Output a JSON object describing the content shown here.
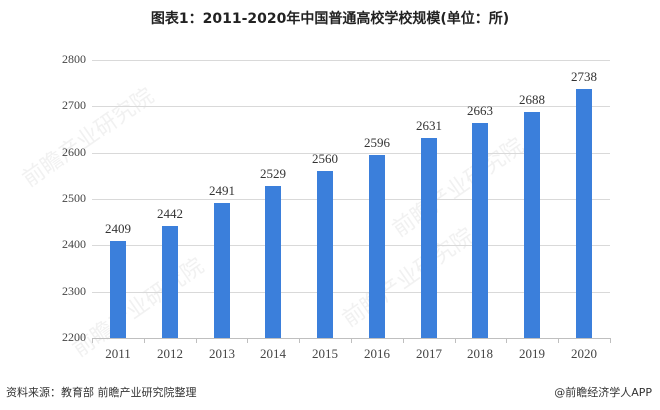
{
  "title": "图表1：2011-2020年中国普通高校学校规模(单位：所)",
  "footer": {
    "source": "资料来源：教育部 前瞻产业研究院整理",
    "credit": "@前瞻经济学人APP"
  },
  "watermark": "前瞻产业研究院",
  "colors": {
    "bar": "#3B7FDB",
    "grid": "#d9d9d9",
    "axis": "#bfbfbf"
  },
  "chart_data": {
    "type": "bar",
    "title": "图表1：2011-2020年中国普通高校学校规模(单位：所)",
    "xlabel": "",
    "ylabel": "",
    "categories": [
      "2011",
      "2012",
      "2013",
      "2014",
      "2015",
      "2016",
      "2017",
      "2018",
      "2019",
      "2020"
    ],
    "values": [
      2409,
      2442,
      2491,
      2529,
      2560,
      2596,
      2631,
      2663,
      2688,
      2738
    ],
    "ylim": [
      2200,
      2800
    ],
    "yticks": [
      2200,
      2300,
      2400,
      2500,
      2600,
      2700,
      2800
    ],
    "grid": true,
    "legend": null,
    "data_labels": true
  }
}
